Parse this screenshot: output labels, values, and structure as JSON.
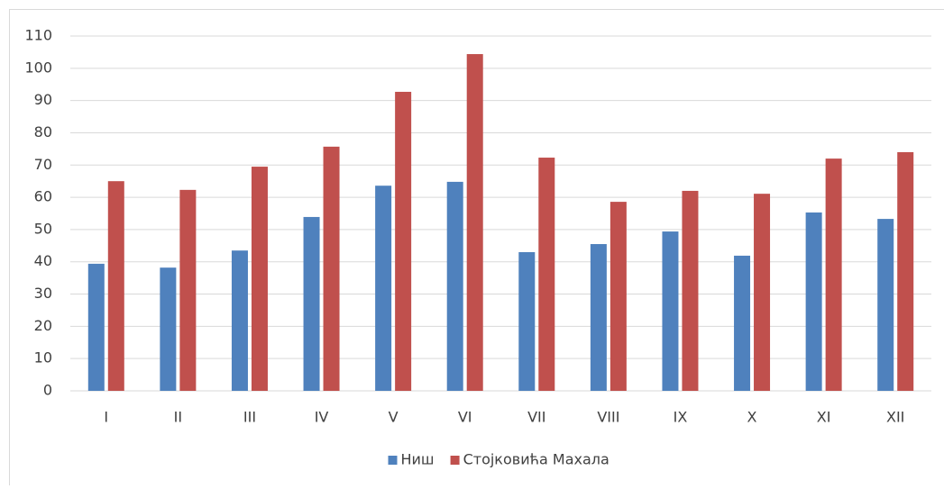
{
  "chart_data": {
    "type": "bar",
    "categories": [
      "I",
      "II",
      "III",
      "IV",
      "V",
      "VI",
      "VII",
      "VIII",
      "IX",
      "X",
      "XI",
      "XII"
    ],
    "series": [
      {
        "name": "Ниш",
        "color": "#4f81bd",
        "values": [
          39.4,
          38.2,
          43.5,
          53.9,
          63.6,
          64.8,
          43.0,
          45.5,
          49.4,
          41.9,
          55.3,
          53.3
        ]
      },
      {
        "name": "Стојковића Махала",
        "color": "#c0504d",
        "values": [
          65.0,
          62.3,
          69.5,
          75.7,
          92.7,
          104.4,
          72.3,
          58.6,
          62.0,
          61.1,
          72.0,
          74.0
        ]
      }
    ],
    "ylim": [
      0,
      110
    ],
    "yticks": [
      0,
      10,
      20,
      30,
      40,
      50,
      60,
      70,
      80,
      90,
      100,
      110
    ],
    "grid": true,
    "legend": "bottom"
  }
}
